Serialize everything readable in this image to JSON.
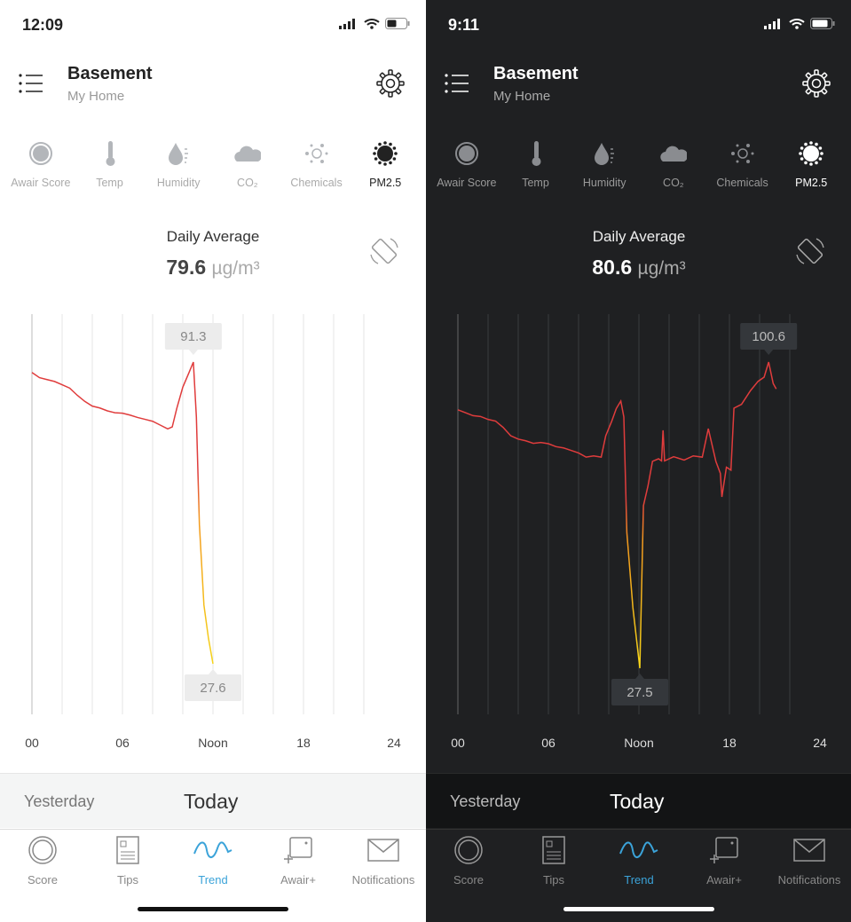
{
  "panels": [
    {
      "theme": "light",
      "status_bar": {
        "time": "12:09"
      },
      "header": {
        "title": "Basement",
        "subtitle": "My Home"
      },
      "sensors": [
        {
          "label": "Awair Score",
          "icon": "awair-score-icon"
        },
        {
          "label": "Temp",
          "icon": "thermometer-icon"
        },
        {
          "label": "Humidity",
          "icon": "humidity-icon"
        },
        {
          "label": "CO₂",
          "icon": "co2-cloud-icon"
        },
        {
          "label": "Chemicals",
          "icon": "chemicals-icon"
        },
        {
          "label": "PM2.5",
          "icon": "pm25-icon",
          "active": true
        }
      ],
      "daily_average": {
        "label": "Daily Average",
        "value": "79.6",
        "unit": "µg/m³"
      },
      "chart": {
        "x_ticks": [
          "00",
          "06",
          "Noon",
          "18",
          "24"
        ],
        "max_label": "91.3",
        "min_label": "27.6",
        "series": [
          [
            0,
            89.1
          ],
          [
            0.5,
            88
          ],
          [
            1,
            87.6
          ],
          [
            1.5,
            87.2
          ],
          [
            2,
            86.5
          ],
          [
            2.5,
            85.8
          ],
          [
            3,
            84.3
          ],
          [
            3.5,
            83
          ],
          [
            4,
            82
          ],
          [
            4.5,
            81.6
          ],
          [
            5,
            81
          ],
          [
            5.5,
            80.6
          ],
          [
            6,
            80.5
          ],
          [
            6.5,
            80.1
          ],
          [
            7,
            79.6
          ],
          [
            7.5,
            79.2
          ],
          [
            8,
            78.8
          ],
          [
            8.5,
            78
          ],
          [
            9,
            77.2
          ],
          [
            9.3,
            77.6
          ],
          [
            9.6,
            81.5
          ],
          [
            10,
            86
          ],
          [
            10.4,
            89
          ],
          [
            10.7,
            91.3
          ],
          [
            10.9,
            79.7
          ],
          [
            11.1,
            57
          ],
          [
            11.4,
            40
          ],
          [
            11.7,
            33
          ],
          [
            12,
            27.6
          ]
        ]
      },
      "day_selector": {
        "previous": "Yesterday",
        "current": "Today"
      },
      "tabs": [
        {
          "label": "Score",
          "icon": "score-ring-icon"
        },
        {
          "label": "Tips",
          "icon": "tips-document-icon"
        },
        {
          "label": "Trend",
          "icon": "trend-wave-icon",
          "active": true
        },
        {
          "label": "Awair+",
          "icon": "awair-plus-icon"
        },
        {
          "label": "Notifications",
          "icon": "envelope-icon"
        }
      ]
    },
    {
      "theme": "dark",
      "status_bar": {
        "time": "9:11"
      },
      "header": {
        "title": "Basement",
        "subtitle": "My Home"
      },
      "sensors": [
        {
          "label": "Awair Score",
          "icon": "awair-score-icon"
        },
        {
          "label": "Temp",
          "icon": "thermometer-icon"
        },
        {
          "label": "Humidity",
          "icon": "humidity-icon"
        },
        {
          "label": "CO₂",
          "icon": "co2-cloud-icon"
        },
        {
          "label": "Chemicals",
          "icon": "chemicals-icon"
        },
        {
          "label": "PM2.5",
          "icon": "pm25-icon",
          "active": true
        }
      ],
      "daily_average": {
        "label": "Daily Average",
        "value": "80.6",
        "unit": "µg/m³"
      },
      "chart": {
        "x_ticks": [
          "00",
          "06",
          "Noon",
          "18",
          "24"
        ],
        "max_label": "100.6",
        "min_label": "27.5",
        "series": [
          [
            0,
            89.2
          ],
          [
            0.5,
            88.5
          ],
          [
            1,
            87.8
          ],
          [
            1.5,
            87.6
          ],
          [
            2,
            86.9
          ],
          [
            2.5,
            86.5
          ],
          [
            3,
            85
          ],
          [
            3.5,
            83
          ],
          [
            4,
            82.2
          ],
          [
            4.5,
            81.8
          ],
          [
            5,
            81.2
          ],
          [
            5.5,
            81.4
          ],
          [
            6,
            81.1
          ],
          [
            6.5,
            80.4
          ],
          [
            7,
            80.1
          ],
          [
            7.5,
            79.5
          ],
          [
            8,
            78.9
          ],
          [
            8.5,
            77.9
          ],
          [
            9,
            78.2
          ],
          [
            9.5,
            77.9
          ],
          [
            9.8,
            83
          ],
          [
            10.2,
            86.5
          ],
          [
            10.5,
            89.5
          ],
          [
            10.8,
            91.3
          ],
          [
            11,
            87.5
          ],
          [
            11.2,
            59.9
          ],
          [
            11.6,
            42
          ],
          [
            12.06,
            27.5
          ],
          [
            12.3,
            66.3
          ],
          [
            12.6,
            71
          ],
          [
            12.9,
            76.9
          ],
          [
            13.3,
            77.5
          ],
          [
            13.5,
            77
          ],
          [
            13.6,
            84.3
          ],
          [
            13.7,
            77
          ],
          [
            14.3,
            78
          ],
          [
            15,
            77.2
          ],
          [
            15.6,
            78.2
          ],
          [
            16.2,
            77.9
          ],
          [
            16.6,
            84.7
          ],
          [
            17.1,
            76.9
          ],
          [
            17.4,
            74
          ],
          [
            17.5,
            68.4
          ],
          [
            17.8,
            75.5
          ],
          [
            18.1,
            74.8
          ],
          [
            18.3,
            89.6
          ],
          [
            18.8,
            90.5
          ],
          [
            19.4,
            93.8
          ],
          [
            19.9,
            96
          ],
          [
            20.3,
            97
          ],
          [
            20.6,
            100.6
          ],
          [
            20.9,
            95.5
          ],
          [
            21.1,
            94.2
          ]
        ]
      },
      "day_selector": {
        "previous": "Yesterday",
        "current": "Today"
      },
      "tabs": [
        {
          "label": "Score",
          "icon": "score-ring-icon"
        },
        {
          "label": "Tips",
          "icon": "tips-document-icon"
        },
        {
          "label": "Trend",
          "icon": "trend-wave-icon",
          "active": true
        },
        {
          "label": "Awair+",
          "icon": "awair-plus-icon"
        },
        {
          "label": "Notifications",
          "icon": "envelope-icon"
        }
      ]
    }
  ],
  "colors": {
    "accent": "#3ba3d9",
    "high": "#e03c3c",
    "mid": "#f39a1e",
    "low": "#f5d419"
  }
}
